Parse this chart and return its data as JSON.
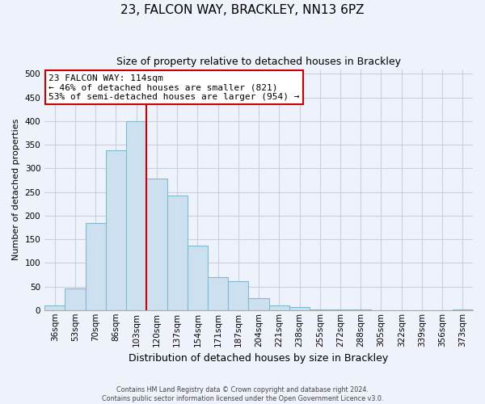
{
  "title": "23, FALCON WAY, BRACKLEY, NN13 6PZ",
  "subtitle": "Size of property relative to detached houses in Brackley",
  "xlabel": "Distribution of detached houses by size in Brackley",
  "ylabel": "Number of detached properties",
  "bar_labels": [
    "36sqm",
    "53sqm",
    "70sqm",
    "86sqm",
    "103sqm",
    "120sqm",
    "137sqm",
    "154sqm",
    "171sqm",
    "187sqm",
    "204sqm",
    "221sqm",
    "238sqm",
    "255sqm",
    "272sqm",
    "288sqm",
    "305sqm",
    "322sqm",
    "339sqm",
    "356sqm",
    "373sqm"
  ],
  "bar_values": [
    10,
    46,
    185,
    338,
    400,
    278,
    242,
    137,
    70,
    62,
    26,
    10,
    6,
    2,
    1,
    1,
    0,
    0,
    0,
    0,
    2
  ],
  "bar_color": "#cce0f0",
  "bar_edge_color": "#7fbcd2",
  "vline_color": "#cc0000",
  "annotation_title": "23 FALCON WAY: 114sqm",
  "annotation_line1": "← 46% of detached houses are smaller (821)",
  "annotation_line2": "53% of semi-detached houses are larger (954) →",
  "annotation_box_color": "white",
  "annotation_box_edge": "#cc0000",
  "ylim": [
    0,
    510
  ],
  "yticks": [
    0,
    50,
    100,
    150,
    200,
    250,
    300,
    350,
    400,
    450,
    500
  ],
  "footnote1": "Contains HM Land Registry data © Crown copyright and database right 2024.",
  "footnote2": "Contains public sector information licensed under the Open Government Licence v3.0.",
  "bg_color": "#eef2fb",
  "grid_color": "#c8d0e0",
  "title_fontsize": 11,
  "subtitle_fontsize": 9,
  "xlabel_fontsize": 9,
  "ylabel_fontsize": 8,
  "tick_fontsize": 7.5,
  "annotation_fontsize": 8
}
